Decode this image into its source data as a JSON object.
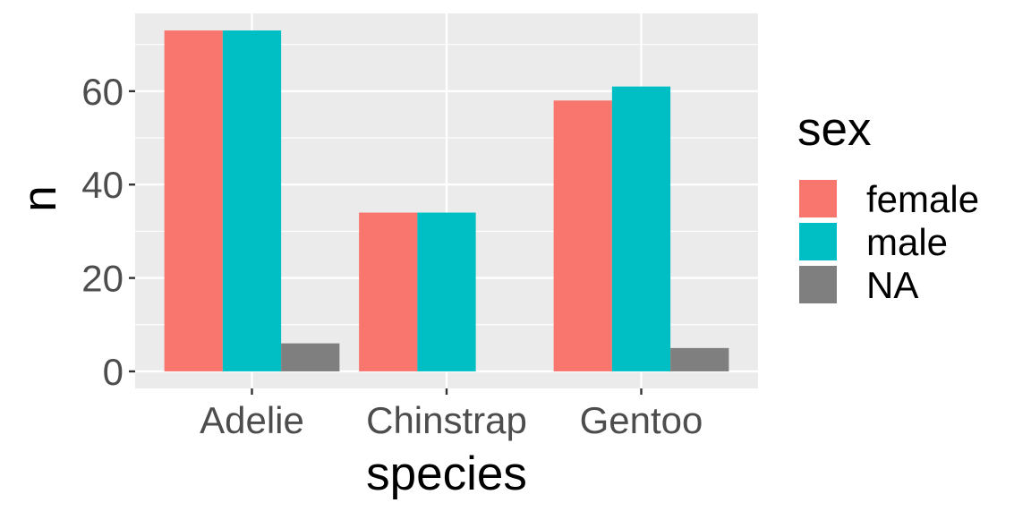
{
  "chart_data": {
    "type": "bar",
    "xlabel": "species",
    "ylabel": "n",
    "categories": [
      "Adelie",
      "Chinstrap",
      "Gentoo"
    ],
    "ylim": [
      -3.65,
      76.65
    ],
    "yticks": [
      0,
      20,
      40,
      60
    ],
    "y_minor_ticks": [
      10,
      30,
      50,
      70
    ],
    "grid": true,
    "legend": {
      "title": "sex",
      "position": "right"
    },
    "series": [
      {
        "name": "female",
        "color": "#F8766D",
        "values": [
          73,
          34,
          58
        ]
      },
      {
        "name": "male",
        "color": "#00BFC4",
        "values": [
          73,
          34,
          61
        ]
      },
      {
        "name": "NA",
        "color": "#7F7F7F",
        "values": [
          6,
          null,
          5
        ]
      }
    ]
  }
}
